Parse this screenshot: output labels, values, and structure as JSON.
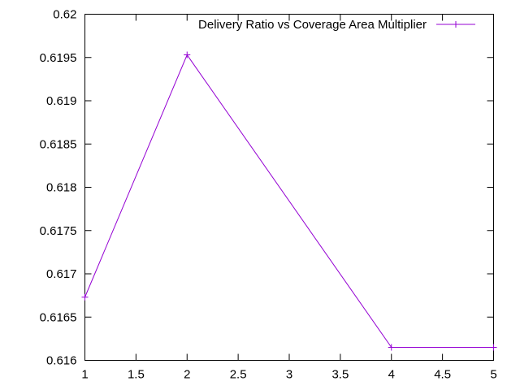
{
  "chart_data": {
    "type": "line",
    "title": "",
    "xlabel": "",
    "ylabel": "",
    "xlim": [
      1,
      5
    ],
    "ylim": [
      0.616,
      0.62
    ],
    "x_ticks": [
      "1",
      "1.5",
      "2",
      "2.5",
      "3",
      "3.5",
      "4",
      "4.5",
      "5"
    ],
    "y_ticks": [
      "0.616",
      "0.6165",
      "0.617",
      "0.6175",
      "0.618",
      "0.6185",
      "0.619",
      "0.6195",
      "0.62"
    ],
    "grid": false,
    "legend_position": "top-right",
    "series": [
      {
        "name": "Delivery Ratio vs Coverage Area Multiplier",
        "color": "#9400d3",
        "marker": "plus",
        "x": [
          1,
          2,
          4,
          5
        ],
        "y": [
          0.61673,
          0.61953,
          0.61615,
          0.61615
        ]
      }
    ]
  }
}
